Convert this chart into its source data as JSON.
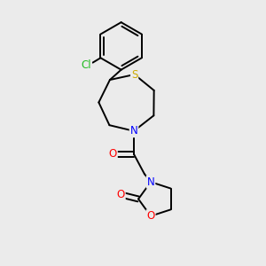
{
  "background_color": "#ebebeb",
  "bond_color": "#000000",
  "figsize": [
    3.0,
    3.0
  ],
  "dpi": 100,
  "atoms": {
    "Cl": {
      "color": "#22bb22",
      "fontsize": 8.5
    },
    "S": {
      "color": "#ccaa00",
      "fontsize": 8.5
    },
    "N": {
      "color": "#0000ff",
      "fontsize": 8.5
    },
    "O": {
      "color": "#ff0000",
      "fontsize": 8.5
    }
  },
  "lw": 1.4
}
